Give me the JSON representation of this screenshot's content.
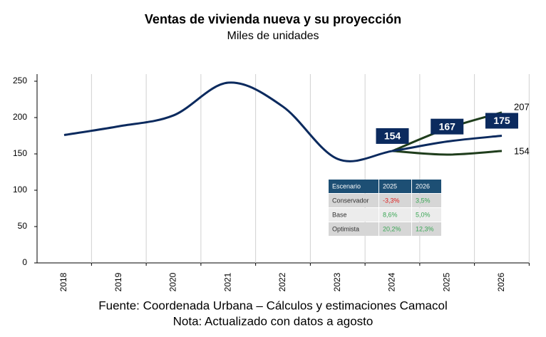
{
  "chart_data": {
    "type": "line",
    "title": "Ventas de vivienda nueva y su proyección",
    "subtitle": "Miles de unidades",
    "categories": [
      "2018",
      "2019",
      "2020",
      "2021",
      "2022",
      "2023",
      "2024",
      "2025",
      "2026"
    ],
    "series": [
      {
        "name": "Base",
        "color": "#0b2a5e",
        "values": [
          176,
          188,
          203,
          248,
          215,
          143,
          154,
          167,
          175
        ]
      },
      {
        "name": "Optimista",
        "color": "#1f3d1c",
        "values": [
          null,
          null,
          null,
          null,
          null,
          null,
          154,
          185,
          207
        ]
      },
      {
        "name": "Conservador",
        "color": "#1f3d1c",
        "values": [
          null,
          null,
          null,
          null,
          null,
          null,
          154,
          149,
          154
        ]
      }
    ],
    "ylim": [
      0,
      250
    ],
    "yticks": [
      0,
      50,
      100,
      150,
      200,
      250
    ],
    "table": {
      "header": [
        "Escenario",
        "2025",
        "2026"
      ],
      "rows": [
        [
          "Conservador",
          "-3,3%",
          "3,5%"
        ],
        [
          "Base",
          "8,6%",
          "5,0%"
        ],
        [
          "Optimista",
          "20,2%",
          "12,3%"
        ]
      ]
    },
    "source": "Fuente: Coordenada Urbana – Cálculos y estimaciones Camacol",
    "note": "Nota: Actualizado con datos a agosto"
  }
}
